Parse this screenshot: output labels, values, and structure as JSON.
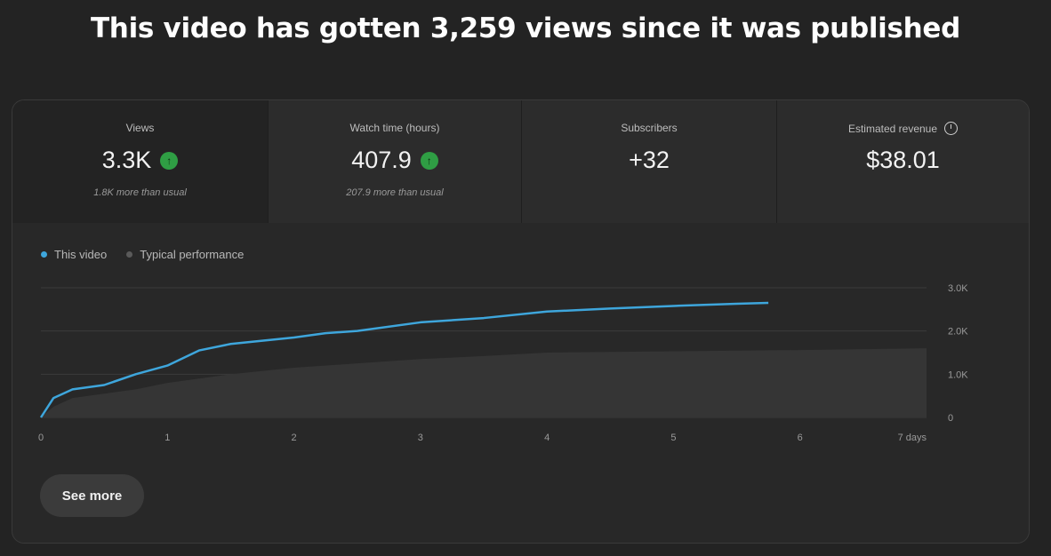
{
  "headline": "This video has gotten 3,259 views since it was published",
  "metrics": [
    {
      "label": "Views",
      "value": "3.3K",
      "trend": "up",
      "sub": "1.8K more than usual"
    },
    {
      "label": "Watch time (hours)",
      "value": "407.9",
      "trend": "up",
      "sub": "207.9 more than usual"
    },
    {
      "label": "Subscribers",
      "value": "+32",
      "trend": null,
      "sub": ""
    },
    {
      "label": "Estimated revenue",
      "value": "$38.01",
      "trend": null,
      "sub": ""
    }
  ],
  "colors": {
    "this_video": "#3ea6dc",
    "typical": "#5a5a5a",
    "up_badge": "#2f9e44"
  },
  "button": {
    "see_more": "See more"
  },
  "chart_data": {
    "type": "area",
    "legend": [
      "This video",
      "Typical performance"
    ],
    "legend_placement": "top-left",
    "xlabel": "",
    "ylabel": "",
    "x_ticks": [
      "0",
      "1",
      "2",
      "3",
      "4",
      "5",
      "6",
      "7 days"
    ],
    "y_ticks": [
      "0",
      "1.0K",
      "2.0K",
      "3.0K"
    ],
    "xlim": [
      0,
      7
    ],
    "ylim": [
      0,
      3000
    ],
    "series": [
      {
        "name": "This video",
        "x": [
          0,
          0.1,
          0.25,
          0.5,
          0.75,
          1.0,
          1.25,
          1.5,
          2.0,
          2.25,
          2.5,
          3.0,
          3.5,
          4.0,
          4.5,
          5.0,
          5.5,
          5.75
        ],
        "y": [
          0,
          450,
          650,
          750,
          1000,
          1200,
          1550,
          1700,
          1850,
          1950,
          2000,
          2200,
          2300,
          2450,
          2520,
          2580,
          2630,
          2650
        ]
      },
      {
        "name": "Typical performance",
        "x": [
          0,
          0.1,
          0.25,
          0.5,
          0.75,
          1.0,
          1.5,
          2.0,
          2.5,
          3.0,
          3.5,
          4.0,
          5.0,
          6.0,
          7.0
        ],
        "y": [
          0,
          250,
          450,
          550,
          650,
          800,
          1000,
          1150,
          1250,
          1350,
          1420,
          1500,
          1530,
          1560,
          1600
        ]
      }
    ]
  }
}
